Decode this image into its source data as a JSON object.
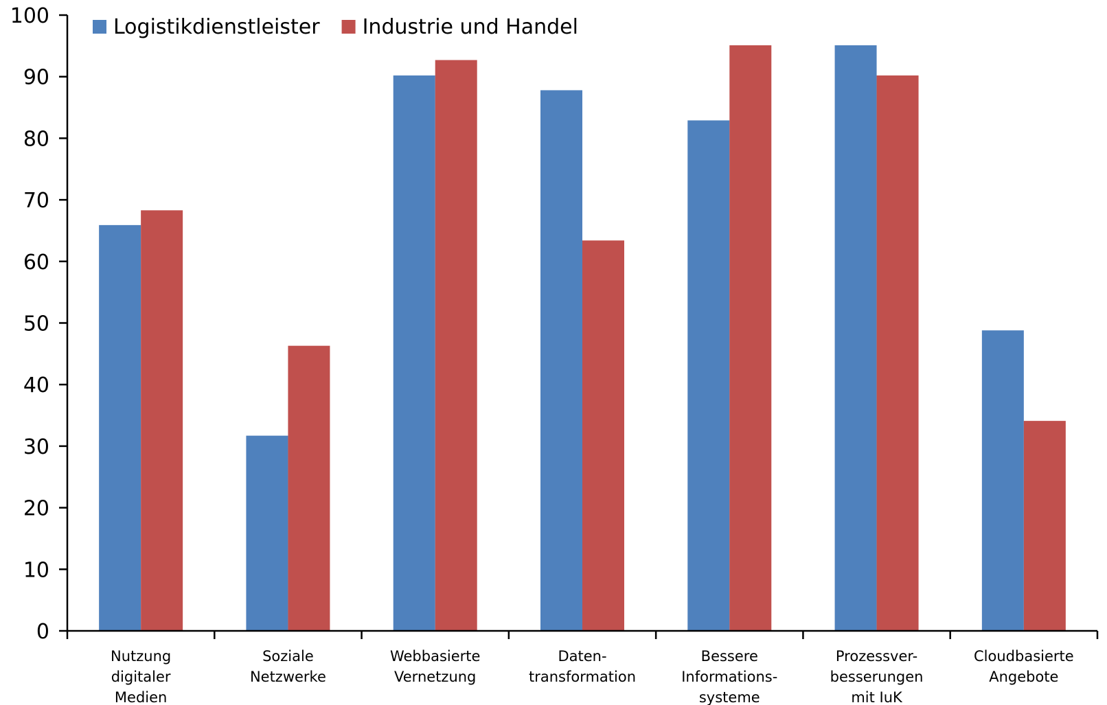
{
  "chart_data": {
    "type": "bar",
    "title": "",
    "xlabel": "",
    "ylabel": "",
    "ylim": [
      0,
      100
    ],
    "yticks": [
      0,
      10,
      20,
      30,
      40,
      50,
      60,
      70,
      80,
      90,
      100
    ],
    "grid": false,
    "legend_position": "top-left",
    "categories": [
      [
        "Nutzung",
        "digitaler",
        "Medien"
      ],
      [
        "Soziale",
        "Netzwerke"
      ],
      [
        "Webbasierte",
        "Vernetzung"
      ],
      [
        "Daten-",
        "transformation"
      ],
      [
        "Bessere",
        "Informations-",
        "systeme"
      ],
      [
        "Prozessver-",
        "besserungen",
        "mit IuK"
      ],
      [
        "Cloudbasierte",
        "Angebote"
      ]
    ],
    "series": [
      {
        "name": "Logistikdienstleister",
        "color": "#4F81BD",
        "values": [
          65.9,
          31.7,
          90.2,
          87.8,
          82.9,
          95.1,
          48.8
        ]
      },
      {
        "name": "Industrie und Handel",
        "color": "#C0504D",
        "values": [
          68.3,
          46.3,
          92.7,
          63.4,
          95.1,
          90.2,
          34.1
        ]
      }
    ]
  }
}
